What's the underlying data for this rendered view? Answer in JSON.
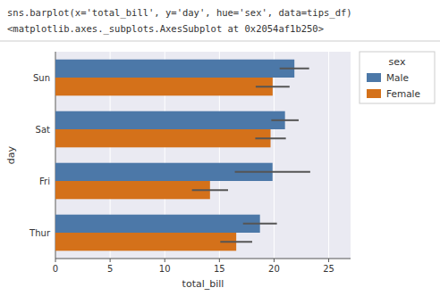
{
  "chart_data": {
    "type": "bar",
    "orientation": "horizontal",
    "title": "sns.barplot(x='total_bill', y='day', hue='sex', data=tips_df)",
    "subtitle": "<matplotlib.axes._subplots.AxesSubplot at 0x2054af1b250>",
    "categories": [
      "Thur",
      "Fri",
      "Sat",
      "Sun"
    ],
    "series": [
      {
        "name": "Male",
        "color": "#4c78a8",
        "values": [
          18.71,
          19.86,
          21.0,
          21.86
        ],
        "ci": [
          1.55,
          3.45,
          1.25,
          1.35
        ]
      },
      {
        "name": "Female",
        "color": "#d4711a",
        "values": [
          16.54,
          14.14,
          19.68,
          19.87
        ],
        "ci": [
          1.46,
          1.65,
          1.4,
          1.55
        ]
      }
    ],
    "x_label": "total_bill",
    "y_label": "day",
    "xlim": [
      0,
      27
    ],
    "xticks": [
      0,
      5,
      10,
      15,
      20,
      25
    ],
    "grid": true,
    "legend": "upper right",
    "legend_title": "sex"
  }
}
